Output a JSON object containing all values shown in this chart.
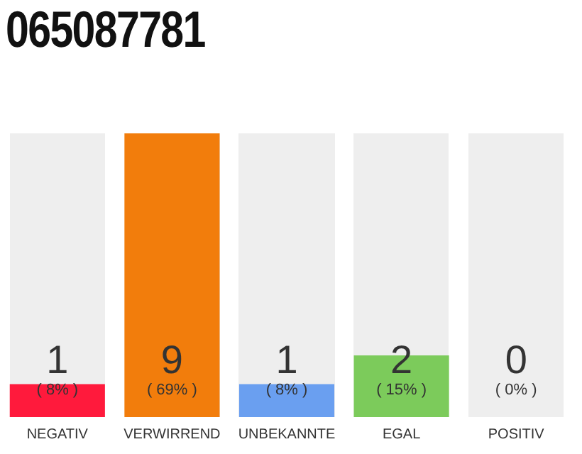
{
  "chart_data": {
    "type": "bar",
    "title": "065087781",
    "categories": [
      "NEGATIV",
      "VERWIRREND",
      "UNBEKANNTE",
      "EGAL",
      "POSITIV"
    ],
    "values": [
      8,
      69,
      8,
      15,
      0
    ],
    "annotations": [
      "1",
      "9",
      "1",
      "2",
      "0"
    ],
    "colors": [
      "#ff1a3c",
      "#f27d0c",
      "#6a9ff0",
      "#7ccb5b",
      "#cccccc"
    ],
    "tick_labels": "x",
    "grid": false,
    "legend": false,
    "value_labels": [
      "( 8% )",
      "( 69% )",
      "( 8% )",
      "( 15% )",
      "( 0% )"
    ]
  }
}
